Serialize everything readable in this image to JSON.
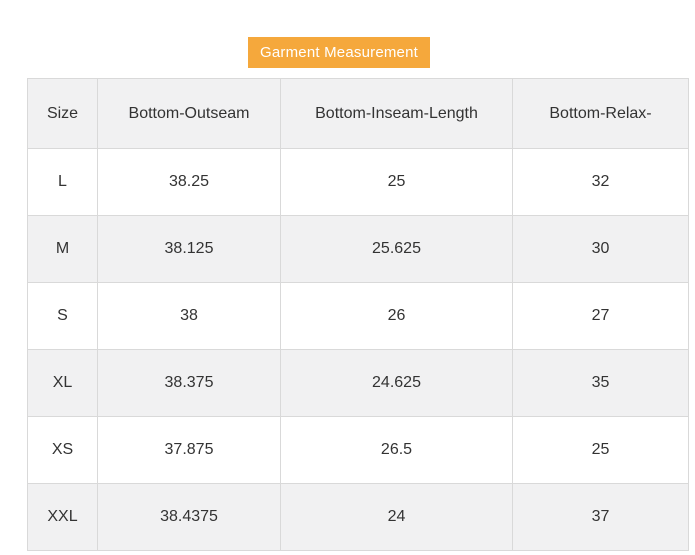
{
  "badge": {
    "label": "Garment Measurement",
    "background": "#f5a83c",
    "text_color": "#ffffff"
  },
  "table": {
    "columns": [
      "Size",
      "Bottom-Outseam",
      "Bottom-Inseam-Length",
      "Bottom-Relax-"
    ],
    "rows": [
      {
        "size": "L",
        "values": [
          "38.25",
          "25",
          "32"
        ]
      },
      {
        "size": "M",
        "values": [
          "38.125",
          "25.625",
          "30"
        ]
      },
      {
        "size": "S",
        "values": [
          "38",
          "26",
          "27"
        ]
      },
      {
        "size": "XL",
        "values": [
          "38.375",
          "24.625",
          "35"
        ]
      },
      {
        "size": "XS",
        "values": [
          "37.875",
          "26.5",
          "25"
        ]
      },
      {
        "size": "XXL",
        "values": [
          "38.4375",
          "24",
          "37"
        ]
      }
    ],
    "colors": {
      "header_background": "#f1f1f2",
      "stripe_background": "#f1f1f2",
      "border": "#d9d9d9",
      "text": "#333333"
    }
  }
}
